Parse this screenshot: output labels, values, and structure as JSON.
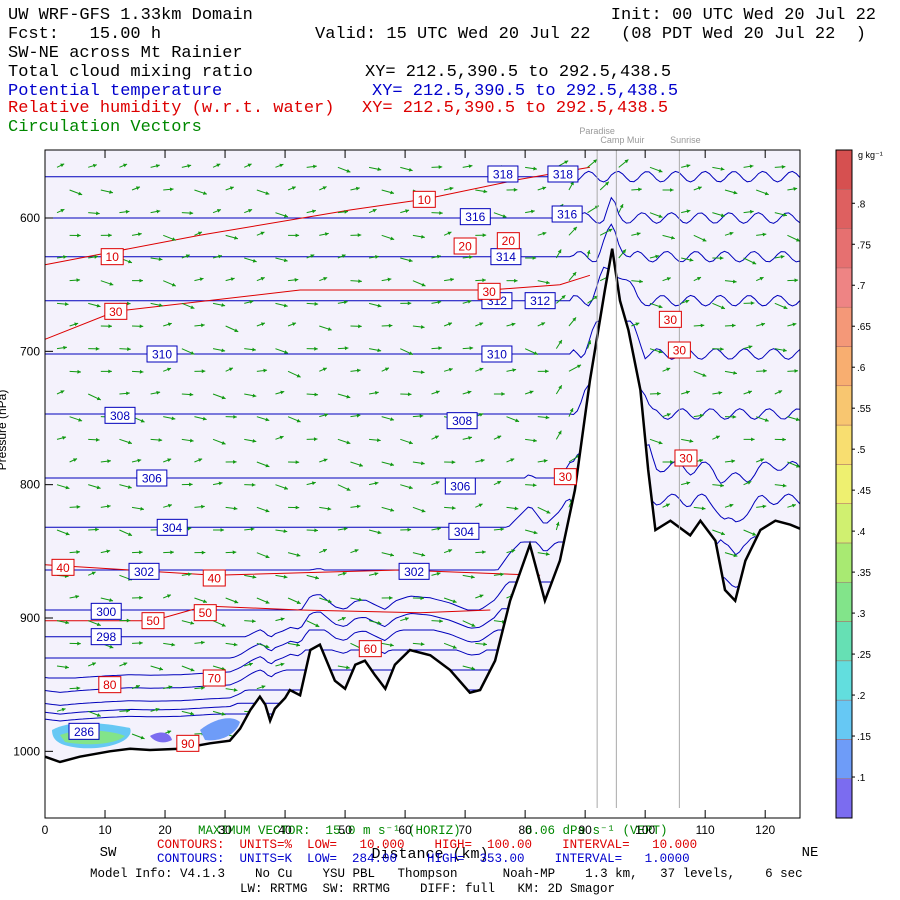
{
  "chart_data": {
    "type": "cross-section",
    "header": {
      "model": "UW WRF-GFS 1.33km Domain",
      "init": "Init: 00 UTC Wed 20 Jul 22",
      "fcst": "Fcst:   15.00 h",
      "valid": "Valid: 15 UTC Wed 20 Jul 22   (08 PDT Wed 20 Jul 22  )",
      "section": "SW-NE across Mt Rainier",
      "field1": "Total cloud mixing ratio",
      "xy1": "XY= 212.5,390.5 to 292.5,438.5",
      "field2": "Potential temperature",
      "xy2": "XY= 212.5,390.5 to 292.5,438.5",
      "field3": "Relative humidity (w.r.t. water)",
      "xy3": "XY= 212.5,390.5 to 292.5,438.5",
      "field4": "Circulation Vectors"
    },
    "footer": {
      "left_end": "SW",
      "right_end": "NE",
      "vector_h": "MAXIMUM VECTOR:  15.0 m s⁻¹ (HORIZ)",
      "vector_v": "6.06 dPa s⁻¹ (VERT)",
      "contours_rh": "CONTOURS:  UNITS=%  LOW=   10.000    HIGH=  100.00    INTERVAL=   10.000",
      "contours_th": "CONTOURS:  UNITS=K  LOW=  284.00    HIGH=  353.00    INTERVAL=   1.0000",
      "model_info": "Model Info: V4.1.3    No Cu    YSU PBL   Thompson      Noah-MP    1.3 km,   37 levels,    6 sec",
      "physics": "LW: RRTMG  SW: RRTMG    DIFF: full   KM: 2D Smagor"
    },
    "xlabel": "Distance (km)",
    "ylabel": "Pressure (hPa)",
    "xlim": [
      0,
      125.8
    ],
    "xticks": [
      0,
      10,
      20,
      30,
      40,
      50,
      60,
      70,
      80,
      90,
      100,
      110,
      120
    ],
    "ylim": [
      549,
      1050
    ],
    "yticks": [
      600,
      700,
      800,
      900,
      1000
    ],
    "terrain": {
      "x": [
        0,
        2.5,
        5.8,
        10.8,
        14.2,
        17.5,
        22.5,
        27.5,
        30.8,
        32.5,
        34.2,
        35.8,
        36.7,
        37.5,
        38.3,
        40,
        40.8,
        42.5,
        44.2,
        45.8,
        48.3,
        50,
        51.7,
        53.3,
        55,
        56.7,
        58.3,
        60.8,
        64.2,
        67.5,
        70.8,
        72.5,
        75,
        77.5,
        80.8,
        83.3,
        85.8,
        88.3,
        90.8,
        93.3,
        94.5,
        95.8,
        97.2,
        99.2,
        100.5,
        101.7,
        104.2,
        107.5,
        109.2,
        111.7,
        113.3,
        115,
        116.7,
        119.2,
        121.7,
        124.2,
        125.8
      ],
      "p": [
        1004,
        1008,
        1004,
        1000,
        998,
        999,
        998,
        994,
        992,
        983,
        969,
        959,
        965,
        977,
        968,
        960,
        954,
        958,
        924,
        920,
        947,
        953,
        935,
        932,
        943,
        953,
        935,
        924,
        928,
        939,
        956,
        954,
        932,
        887,
        845,
        887,
        857,
        804,
        722,
        654,
        623,
        662,
        684,
        729,
        789,
        834,
        827,
        838,
        827,
        842,
        879,
        887,
        857,
        834,
        827,
        830,
        833
      ]
    },
    "isentropes": [
      {
        "value": 318,
        "p": 569
      },
      {
        "value": 316,
        "p": 600
      },
      {
        "value": 314,
        "p": 629
      },
      {
        "value": 312,
        "p": 662
      },
      {
        "value": 310,
        "p": 702
      },
      {
        "value": 308,
        "p": 747
      },
      {
        "value": 306,
        "p": 795
      },
      {
        "value": 304,
        "p": 832
      },
      {
        "value": 302,
        "p": 864
      },
      {
        "value": 300,
        "p": 894
      },
      {
        "value": 298,
        "p": 914
      },
      {
        "value": 296,
        "p": 930
      },
      {
        "value": 294,
        "p": 945
      },
      {
        "value": 292,
        "p": 960
      },
      {
        "value": 290,
        "p": 975
      },
      {
        "value": 288,
        "p": 985
      },
      {
        "value": 286,
        "p": 993
      }
    ],
    "theta_labels": [
      {
        "value": 318,
        "x": 76.3,
        "p": 567
      },
      {
        "value": 318,
        "x": 86.3,
        "p": 567
      },
      {
        "value": 316,
        "x": 71.7,
        "p": 599
      },
      {
        "value": 316,
        "x": 87,
        "p": 597
      },
      {
        "value": 314,
        "x": 76.8,
        "p": 629
      },
      {
        "value": 312,
        "x": 75.3,
        "p": 662
      },
      {
        "value": 312,
        "x": 82.5,
        "p": 662
      },
      {
        "value": 310,
        "x": 19.5,
        "p": 702
      },
      {
        "value": 310,
        "x": 75.3,
        "p": 702
      },
      {
        "value": 308,
        "x": 12.5,
        "p": 748
      },
      {
        "value": 308,
        "x": 69.5,
        "p": 752
      },
      {
        "value": 306,
        "x": 17.8,
        "p": 795
      },
      {
        "value": 306,
        "x": 69.2,
        "p": 801
      },
      {
        "value": 304,
        "x": 21.2,
        "p": 832
      },
      {
        "value": 304,
        "x": 69.8,
        "p": 835
      },
      {
        "value": 302,
        "x": 16.5,
        "p": 865
      },
      {
        "value": 302,
        "x": 61.5,
        "p": 865
      },
      {
        "value": 300,
        "x": 10.2,
        "p": 895
      },
      {
        "value": 298,
        "x": 10.2,
        "p": 914
      },
      {
        "value": 286,
        "x": 6.5,
        "p": 985
      }
    ],
    "rh_contours": [
      {
        "value": 10,
        "x": [
          0,
          25.8,
          50.8,
          63.2,
          79.2,
          90.8
        ],
        "p": [
          635,
          613,
          594,
          586,
          571,
          562
        ]
      },
      {
        "value": 30,
        "x": [
          0,
          11.8,
          42.5,
          74,
          85.8,
          90.8
        ],
        "p": [
          691,
          670,
          654,
          654,
          650,
          643
        ]
      },
      {
        "value": 40,
        "x": [
          0,
          28.2,
          59.2,
          82.5
        ],
        "p": [
          860,
          868,
          864,
          868
        ]
      },
      {
        "value": 50,
        "x": [
          0,
          18,
          26.7,
          42.5,
          62.5,
          74.2
        ],
        "p": [
          902,
          902,
          891,
          894,
          896,
          894
        ]
      }
    ],
    "rh_labels": [
      {
        "value": 10,
        "x": 63.2,
        "p": 586
      },
      {
        "value": 10,
        "x": 11.2,
        "p": 629
      },
      {
        "value": 20,
        "x": 70,
        "p": 621
      },
      {
        "value": 20,
        "x": 77.2,
        "p": 617
      },
      {
        "value": 30,
        "x": 11.8,
        "p": 670
      },
      {
        "value": 30,
        "x": 74,
        "p": 655
      },
      {
        "value": 30,
        "x": 104.2,
        "p": 676
      },
      {
        "value": 30,
        "x": 105.7,
        "p": 699
      },
      {
        "value": 30,
        "x": 86.7,
        "p": 794
      },
      {
        "value": 30,
        "x": 106.8,
        "p": 780
      },
      {
        "value": 40,
        "x": 3,
        "p": 862
      },
      {
        "value": 40,
        "x": 28.2,
        "p": 870
      },
      {
        "value": 50,
        "x": 18,
        "p": 902
      },
      {
        "value": 50,
        "x": 26.7,
        "p": 896
      },
      {
        "value": 60,
        "x": 54.2,
        "p": 923
      },
      {
        "value": 80,
        "x": 10.8,
        "p": 950
      },
      {
        "value": 70,
        "x": 28.2,
        "p": 945
      },
      {
        "value": 90,
        "x": 23.8,
        "p": 994
      }
    ],
    "stations": [
      {
        "name": "Paradise",
        "x": 92
      },
      {
        "name": "Camp Muir",
        "x": 95.2
      },
      {
        "name": "Sunrise",
        "x": 105.7
      }
    ],
    "colorbar": {
      "label": "g kg⁻¹",
      "clim": [
        0.05,
        0.865
      ],
      "colors": [
        "#7b6cf0",
        "#6e9cf8",
        "#66c8f4",
        "#62dede",
        "#66e0b4",
        "#82e48a",
        "#a8ea72",
        "#d0f070",
        "#eef070",
        "#f8de70",
        "#f8c670",
        "#f8ae70",
        "#f49878",
        "#ee8484",
        "#e67070",
        "#de6060",
        "#d65050"
      ],
      "ticks": [
        {
          "value": 0.1,
          "label": ".1"
        },
        {
          "value": 0.15,
          "label": ".15"
        },
        {
          "value": 0.2,
          "label": ".2"
        },
        {
          "value": 0.25,
          "label": ".25"
        },
        {
          "value": 0.3,
          "label": ".3"
        },
        {
          "value": 0.35,
          "label": ".35"
        },
        {
          "value": 0.4,
          "label": ".4"
        },
        {
          "value": 0.45,
          "label": ".45"
        },
        {
          "value": 0.5,
          "label": ".5"
        },
        {
          "value": 0.55,
          "label": ".55"
        },
        {
          "value": 0.6,
          "label": ".6"
        },
        {
          "value": 0.65,
          "label": ".65"
        },
        {
          "value": 0.7,
          "label": ".7"
        },
        {
          "value": 0.75,
          "label": ".75"
        },
        {
          "value": 0.8,
          "label": ".8"
        }
      ]
    }
  }
}
